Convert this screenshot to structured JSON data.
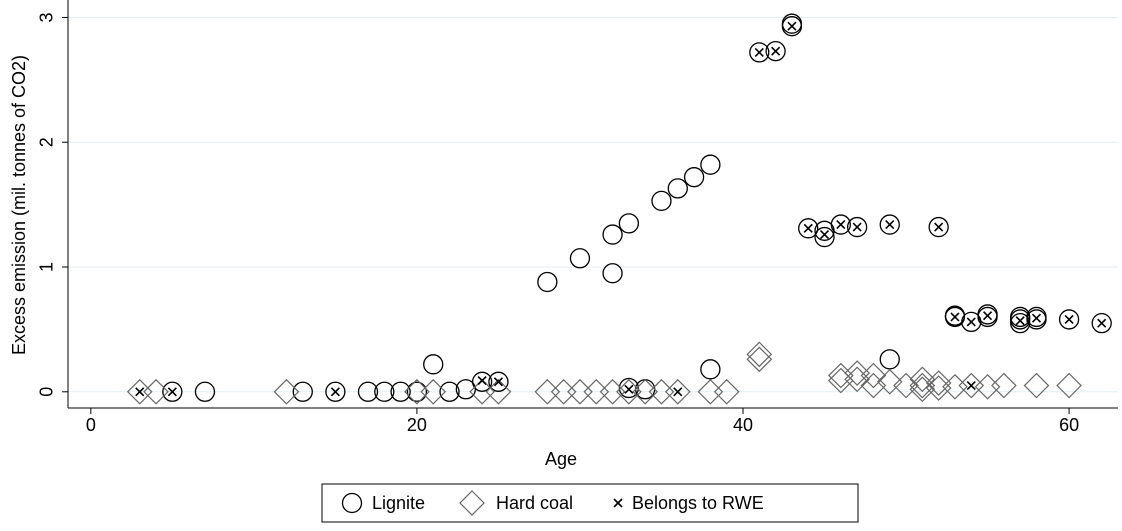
{
  "chart_data": {
    "type": "scatter",
    "xlabel": "Age",
    "ylabel": "Excess emission (mil. tonnes of CO2)",
    "xlim": [
      -1.4,
      63
    ],
    "xticks": [
      0,
      20,
      40,
      60
    ],
    "ylim": [
      -0.13,
      3.14
    ],
    "yticks": [
      0,
      1,
      2,
      3
    ],
    "grid": true,
    "legend": "bottom",
    "series": [
      {
        "name": "Lignite",
        "color": "#000000",
        "marker": "circle",
        "x": [
          5,
          7,
          13,
          15,
          17,
          18,
          19,
          20,
          21,
          22,
          23,
          24,
          25,
          28,
          30,
          32,
          32,
          33,
          33,
          34,
          35,
          36,
          37,
          38,
          38,
          41,
          42,
          43,
          43,
          44,
          45,
          45,
          46,
          47,
          49,
          49,
          52,
          53,
          53,
          54,
          55,
          55,
          57,
          57,
          57,
          58,
          58,
          60,
          62
        ],
        "values": [
          0,
          0,
          0,
          0,
          0,
          0,
          0,
          0,
          0.22,
          0,
          0.02,
          0.08,
          0.08,
          0.88,
          1.07,
          0.95,
          1.26,
          1.35,
          0.03,
          0.02,
          1.53,
          1.63,
          1.72,
          1.82,
          0.18,
          2.72,
          2.73,
          2.93,
          2.95,
          1.31,
          1.29,
          1.24,
          1.34,
          1.32,
          1.34,
          0.26,
          1.32,
          0.6,
          0.61,
          0.56,
          0.6,
          0.62,
          0.58,
          0.55,
          0.6,
          0.6,
          0.58,
          0.58,
          0.55
        ]
      },
      {
        "name": "Hard coal",
        "color": "#666666",
        "marker": "diamond",
        "x": [
          3,
          4,
          12,
          20,
          21,
          24,
          25,
          28,
          29,
          30,
          31,
          32,
          33,
          34,
          35,
          36,
          38,
          39,
          41,
          41,
          46,
          46,
          47,
          47,
          48,
          48,
          49,
          50,
          51,
          51,
          51,
          52,
          52,
          53,
          54,
          55,
          56,
          58,
          60
        ],
        "values": [
          0,
          0,
          0,
          0,
          0,
          0,
          0,
          0,
          0,
          0,
          0,
          0,
          0,
          0,
          0,
          0,
          0,
          0,
          0.3,
          0.26,
          0.13,
          0.09,
          0.15,
          0.1,
          0.05,
          0.13,
          0.08,
          0.05,
          0.1,
          0.05,
          0.02,
          0.07,
          0.03,
          0.04,
          0.05,
          0.04,
          0.05,
          0.05,
          0.05
        ]
      },
      {
        "name": "Belongs to RWE",
        "color": "#000000",
        "marker": "x",
        "x": [
          3,
          5,
          15,
          24,
          25,
          33,
          36,
          41,
          42,
          43,
          44,
          45,
          46,
          47,
          49,
          52,
          53,
          54,
          55,
          57,
          58,
          60,
          62,
          54
        ],
        "values": [
          0,
          0,
          0,
          0.09,
          0.08,
          0.02,
          0,
          2.72,
          2.73,
          2.93,
          1.31,
          1.26,
          1.34,
          1.32,
          1.34,
          1.32,
          0.6,
          0.56,
          0.61,
          0.57,
          0.59,
          0.58,
          0.55,
          0.05
        ]
      }
    ]
  }
}
